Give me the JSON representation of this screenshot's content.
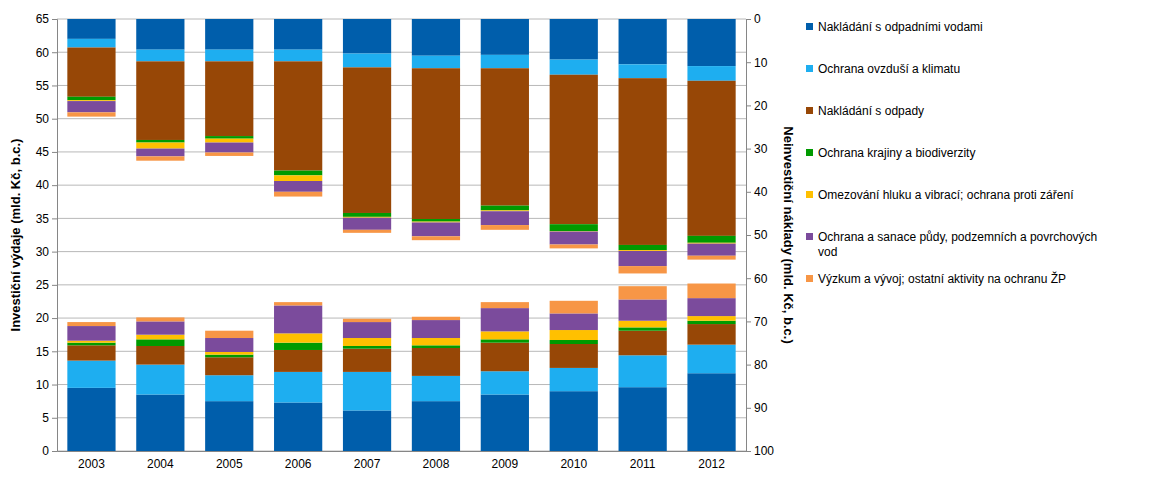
{
  "chart_data": {
    "type": "bar",
    "stacked": true,
    "grid": true,
    "legend": "right",
    "categories": [
      "2003",
      "2004",
      "2005",
      "2006",
      "2007",
      "2008",
      "2009",
      "2010",
      "2011",
      "2012"
    ],
    "ylabel": "Investiční výdaje (mld. Kč, b.c.)",
    "y2label": "Neinvestiční náklady (mld. Kč, b.c.)",
    "ylim": [
      0,
      65
    ],
    "yticks": [
      0,
      5,
      10,
      15,
      20,
      25,
      30,
      35,
      40,
      45,
      50,
      55,
      60,
      65
    ],
    "y2lim": [
      100,
      0
    ],
    "y2ticks": [
      0,
      10,
      20,
      30,
      40,
      50,
      60,
      70,
      80,
      90,
      100
    ],
    "series": [
      {
        "name": "Nakládání s odpadními vodami",
        "color": "#005eab",
        "values": [
          9.5,
          8.5,
          7.5,
          7.3,
          6.1,
          7.5,
          8.5,
          9.0,
          9.6,
          11.7
        ]
      },
      {
        "name": "Ochrana ovzduší a klimatu",
        "color": "#1eaef0",
        "values": [
          4.1,
          4.5,
          3.9,
          4.6,
          5.8,
          3.8,
          3.5,
          3.5,
          4.8,
          4.3
        ]
      },
      {
        "name": "Nakládání s odpady",
        "color": "#974706",
        "values": [
          2.3,
          2.8,
          2.7,
          3.3,
          3.5,
          4.2,
          4.3,
          3.6,
          3.7,
          3.1
        ]
      },
      {
        "name": "Ochrana krajiny a biodiverzity",
        "color": "#009a00",
        "values": [
          0.4,
          1.0,
          0.4,
          1.1,
          0.4,
          0.4,
          0.5,
          0.6,
          0.5,
          0.5
        ]
      },
      {
        "name": "Omezování hluku a vibrací; ochrana proti záření",
        "color": "#ffc000",
        "values": [
          0.3,
          0.7,
          0.4,
          1.4,
          1.2,
          1.1,
          1.2,
          1.5,
          1.0,
          0.7
        ]
      },
      {
        "name": "Ochrana a sanace půdy, podzemních a povrchových vod",
        "color": "#7b4b9c",
        "values": [
          2.2,
          2.0,
          2.1,
          4.2,
          2.4,
          2.7,
          3.5,
          2.5,
          3.2,
          2.7
        ]
      },
      {
        "name": "Výzkum a vývoj; ostatní aktivity na ochranu ŽP",
        "color": "#f79646",
        "values": [
          0.6,
          0.6,
          1.1,
          0.5,
          0.5,
          0.5,
          0.9,
          1.9,
          2.0,
          2.2
        ]
      },
      {
        "name": "Nakládání s odpadními vodami",
        "color": "#005eab",
        "axis": "y2",
        "values": [
          4.6,
          7.1,
          7.1,
          7.1,
          8.0,
          8.5,
          8.3,
          9.4,
          10.5,
          10.9
        ]
      },
      {
        "name": "Ochrana ovzduší a klimatu",
        "color": "#1eaef0",
        "axis": "y2",
        "values": [
          2.0,
          2.7,
          2.7,
          2.7,
          3.2,
          2.9,
          3.1,
          3.5,
          3.2,
          3.4
        ]
      },
      {
        "name": "Nakládání s odpady",
        "color": "#974706",
        "axis": "y2",
        "values": [
          11.4,
          18.2,
          17.3,
          25.3,
          33.7,
          34.9,
          31.8,
          34.6,
          38.6,
          35.9
        ]
      },
      {
        "name": "Ochrana krajiny a biodiverzity",
        "color": "#009a00",
        "axis": "y2",
        "values": [
          0.8,
          0.6,
          0.6,
          1.1,
          0.9,
          0.6,
          1.1,
          1.6,
          1.2,
          1.6
        ]
      },
      {
        "name": "Omezování hluku a vibrací; ochrana proti záření",
        "color": "#ffc000",
        "axis": "y2",
        "values": [
          0.2,
          1.4,
          0.9,
          1.3,
          0.2,
          0.2,
          0.2,
          0.1,
          0.2,
          0.2
        ]
      },
      {
        "name": "Ochrana a sanace půdy, podzemních a povrchových vod",
        "color": "#7b4b9c",
        "axis": "y2",
        "values": [
          2.6,
          1.8,
          2.3,
          2.5,
          2.8,
          3.2,
          3.2,
          3.0,
          3.5,
          2.8
        ]
      },
      {
        "name": "Výzkum a vývoj; ostatní aktivity na ochranu ŽP",
        "color": "#f79646",
        "axis": "y2",
        "values": [
          1.0,
          1.0,
          0.8,
          1.1,
          0.7,
          0.9,
          1.1,
          0.9,
          1.7,
          0.9
        ]
      }
    ]
  }
}
